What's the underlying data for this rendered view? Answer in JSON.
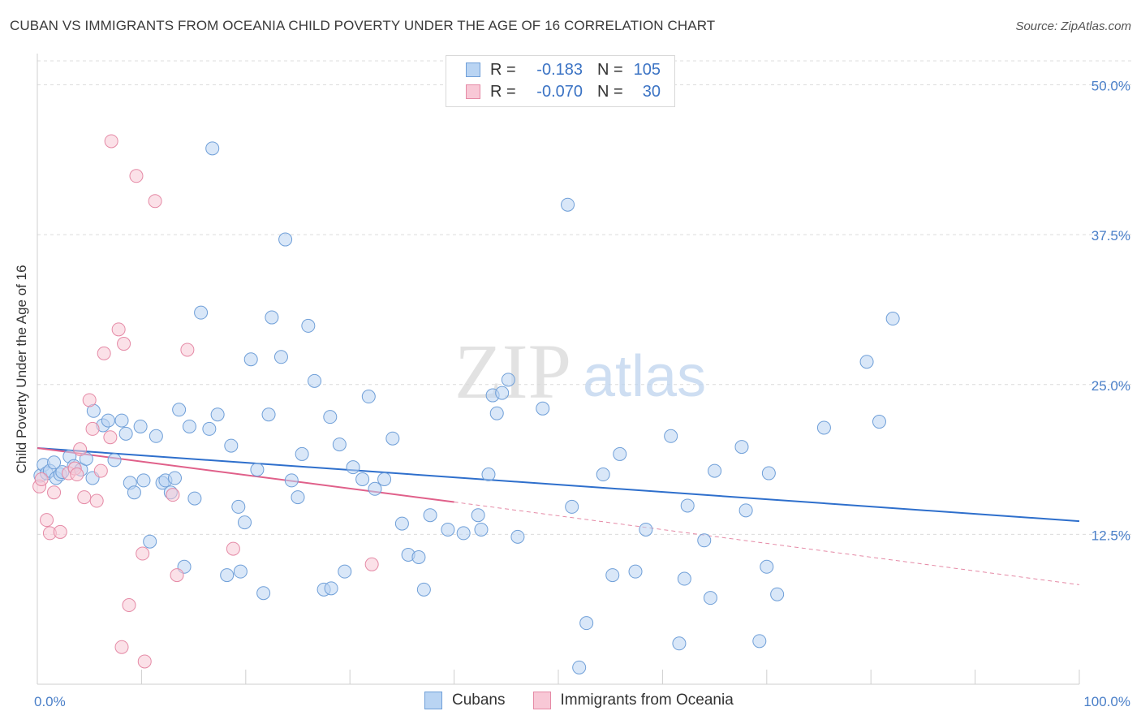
{
  "header": {
    "title": "CUBAN VS IMMIGRANTS FROM OCEANIA CHILD POVERTY UNDER THE AGE OF 16 CORRELATION CHART",
    "source": "Source: ZipAtlas.com"
  },
  "watermark": {
    "zip": "ZIP",
    "atlas": "atlas"
  },
  "legend_top": {
    "rows": [
      {
        "r_label": "R =",
        "r_value": "-0.183",
        "n_label": "N =",
        "n_value": "105",
        "color": "#b9d4f3"
      },
      {
        "r_label": "R =",
        "r_value": "-0.070",
        "n_label": "N =",
        "n_value": "30",
        "color": "#f8c8d6"
      }
    ]
  },
  "legend_bottom": {
    "items": [
      {
        "label": "Cubans",
        "color": "#b9d4f3"
      },
      {
        "label": "Immigrants from Oceania",
        "color": "#f8c8d6"
      }
    ]
  },
  "chart_data": {
    "type": "scatter",
    "title": "CUBAN VS IMMIGRANTS FROM OCEANIA CHILD POVERTY UNDER THE AGE OF 16 CORRELATION CHART",
    "xlabel": "",
    "ylabel": "Child Poverty Under the Age of 16",
    "xlim": [
      0,
      100
    ],
    "ylim": [
      0,
      52
    ],
    "x_tick_labels": [
      "0.0%",
      "100.0%"
    ],
    "y_ticks": [
      12.5,
      25.0,
      37.5,
      50.0
    ],
    "y_tick_labels": [
      "12.5%",
      "25.0%",
      "37.5%",
      "50.0%"
    ],
    "grid": true,
    "legend_placement": "top-center",
    "series": [
      {
        "name": "Cubans",
        "color": "#6f9fd8",
        "fill": "#b9d4f3",
        "trend": {
          "x": [
            0,
            100
          ],
          "y": [
            19.7,
            13.6
          ]
        },
        "points": [
          [
            0.3,
            17.4
          ],
          [
            0.6,
            18.3
          ],
          [
            0.9,
            17.6
          ],
          [
            1.2,
            17.8
          ],
          [
            1.6,
            18.5
          ],
          [
            1.8,
            17.2
          ],
          [
            2.2,
            17.5
          ],
          [
            2.4,
            17.7
          ],
          [
            3.1,
            19.0
          ],
          [
            3.5,
            18.2
          ],
          [
            4.2,
            17.9
          ],
          [
            4.7,
            18.8
          ],
          [
            5.3,
            17.2
          ],
          [
            5.4,
            22.8
          ],
          [
            6.3,
            21.6
          ],
          [
            6.8,
            22.0
          ],
          [
            7.4,
            18.7
          ],
          [
            8.1,
            22.0
          ],
          [
            8.5,
            20.9
          ],
          [
            8.9,
            16.8
          ],
          [
            9.3,
            16.0
          ],
          [
            9.9,
            21.5
          ],
          [
            10.2,
            17.0
          ],
          [
            10.8,
            11.9
          ],
          [
            11.4,
            20.7
          ],
          [
            12.0,
            16.8
          ],
          [
            12.3,
            17.0
          ],
          [
            12.8,
            16.0
          ],
          [
            13.2,
            17.2
          ],
          [
            13.6,
            22.9
          ],
          [
            14.1,
            9.8
          ],
          [
            14.6,
            21.5
          ],
          [
            15.1,
            15.5
          ],
          [
            15.7,
            31.0
          ],
          [
            16.5,
            21.3
          ],
          [
            16.8,
            44.7
          ],
          [
            17.3,
            22.5
          ],
          [
            18.2,
            9.1
          ],
          [
            18.6,
            19.9
          ],
          [
            19.3,
            14.8
          ],
          [
            19.5,
            9.4
          ],
          [
            19.9,
            13.5
          ],
          [
            20.5,
            27.1
          ],
          [
            21.1,
            17.9
          ],
          [
            21.7,
            7.6
          ],
          [
            22.2,
            22.5
          ],
          [
            22.5,
            30.6
          ],
          [
            23.4,
            27.3
          ],
          [
            23.8,
            37.1
          ],
          [
            24.4,
            17.0
          ],
          [
            25.0,
            15.6
          ],
          [
            25.4,
            19.2
          ],
          [
            26.0,
            29.9
          ],
          [
            26.6,
            25.3
          ],
          [
            27.5,
            7.9
          ],
          [
            28.1,
            22.3
          ],
          [
            28.2,
            8.0
          ],
          [
            29.0,
            20.0
          ],
          [
            29.5,
            9.4
          ],
          [
            30.3,
            18.1
          ],
          [
            31.2,
            17.1
          ],
          [
            31.8,
            24.0
          ],
          [
            32.4,
            16.3
          ],
          [
            33.3,
            17.1
          ],
          [
            34.1,
            20.5
          ],
          [
            35.0,
            13.4
          ],
          [
            35.6,
            10.8
          ],
          [
            36.6,
            10.6
          ],
          [
            37.1,
            7.9
          ],
          [
            37.7,
            14.1
          ],
          [
            39.4,
            12.9
          ],
          [
            40.9,
            12.6
          ],
          [
            42.3,
            14.1
          ],
          [
            42.6,
            12.9
          ],
          [
            43.3,
            17.5
          ],
          [
            43.7,
            24.1
          ],
          [
            44.1,
            22.6
          ],
          [
            44.6,
            24.3
          ],
          [
            45.2,
            25.4
          ],
          [
            46.1,
            12.3
          ],
          [
            48.5,
            23.0
          ],
          [
            50.9,
            40.0
          ],
          [
            51.3,
            14.8
          ],
          [
            52.0,
            1.4
          ],
          [
            52.7,
            5.1
          ],
          [
            54.3,
            17.5
          ],
          [
            55.2,
            9.1
          ],
          [
            55.9,
            19.2
          ],
          [
            57.4,
            9.4
          ],
          [
            58.4,
            12.9
          ],
          [
            60.8,
            20.7
          ],
          [
            61.6,
            3.4
          ],
          [
            62.1,
            8.8
          ],
          [
            62.4,
            14.9
          ],
          [
            64.0,
            12.0
          ],
          [
            64.6,
            7.2
          ],
          [
            65.0,
            17.8
          ],
          [
            67.6,
            19.8
          ],
          [
            68.0,
            14.5
          ],
          [
            69.3,
            3.6
          ],
          [
            70.0,
            9.8
          ],
          [
            70.2,
            17.6
          ],
          [
            71.0,
            7.5
          ],
          [
            75.5,
            21.4
          ],
          [
            79.6,
            26.9
          ],
          [
            80.8,
            21.9
          ],
          [
            82.1,
            30.5
          ]
        ]
      },
      {
        "name": "Immigrants from Oceania",
        "color": "#e58aa6",
        "fill": "#f8c8d6",
        "trend": {
          "x": [
            0,
            40
          ],
          "y": [
            19.7,
            15.2
          ]
        },
        "trend_dashed": {
          "x": [
            40,
            100
          ],
          "y": [
            15.2,
            8.3
          ]
        },
        "points": [
          [
            0.2,
            16.5
          ],
          [
            0.4,
            17.1
          ],
          [
            0.9,
            13.7
          ],
          [
            1.2,
            12.6
          ],
          [
            1.6,
            16.0
          ],
          [
            2.2,
            12.7
          ],
          [
            3.0,
            17.6
          ],
          [
            3.6,
            18.0
          ],
          [
            3.8,
            17.5
          ],
          [
            4.1,
            19.6
          ],
          [
            4.5,
            15.6
          ],
          [
            5.0,
            23.7
          ],
          [
            5.3,
            21.3
          ],
          [
            5.7,
            15.3
          ],
          [
            6.1,
            17.8
          ],
          [
            6.4,
            27.6
          ],
          [
            7.0,
            20.6
          ],
          [
            7.1,
            45.3
          ],
          [
            7.8,
            29.6
          ],
          [
            8.1,
            3.1
          ],
          [
            8.3,
            28.4
          ],
          [
            8.8,
            6.6
          ],
          [
            9.5,
            42.4
          ],
          [
            10.1,
            10.9
          ],
          [
            10.3,
            1.9
          ],
          [
            11.3,
            40.3
          ],
          [
            13.0,
            15.8
          ],
          [
            13.4,
            9.1
          ],
          [
            14.4,
            27.9
          ],
          [
            18.8,
            11.3
          ],
          [
            32.1,
            10.0
          ]
        ]
      }
    ]
  }
}
